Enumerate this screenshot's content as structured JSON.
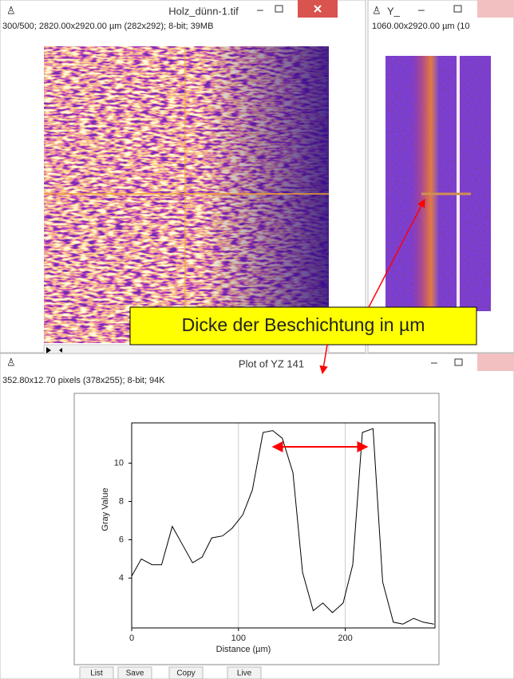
{
  "windows": [
    {
      "title": "Holz_dünn-1.tif",
      "info": "300/500; 2820.00x2920.00 µm (282x292); 8-bit; 39MB"
    },
    {
      "title": "Y_",
      "info": "1060.00x2920.00 µm (10"
    },
    {
      "title": "Plot of YZ 141",
      "info": "352.80x12.70 pixels (378x255); 8-bit; 94K",
      "buttons": [
        "List",
        "Save",
        "Copy",
        "Live"
      ]
    }
  ],
  "annotation": "Dicke der Beschichtung in µm",
  "chart_data": {
    "type": "line",
    "xlabel": "Distance (µm)",
    "ylabel": "Gray Value",
    "x": [
      0,
      9,
      19,
      28,
      38,
      47,
      57,
      66,
      75,
      85,
      94,
      104,
      113,
      123,
      132,
      141,
      151,
      160,
      170,
      179,
      188,
      198,
      207,
      216,
      226,
      235,
      245,
      254,
      264,
      273,
      283
    ],
    "values": [
      4.1,
      5.0,
      4.7,
      4.7,
      6.7,
      5.8,
      4.8,
      5.1,
      6.1,
      6.2,
      6.6,
      7.3,
      8.6,
      11.6,
      11.7,
      11.3,
      9.5,
      4.3,
      2.3,
      2.7,
      2.2,
      2.7,
      4.7,
      11.6,
      11.8,
      3.8,
      1.7,
      1.6,
      1.9,
      1.7,
      1.6
    ],
    "color": "#000000",
    "xlim": [
      0,
      284
    ],
    "ylim": [
      1.4,
      12.1
    ],
    "xticks": [
      0,
      100,
      200
    ],
    "yticks": [
      4,
      6,
      8,
      10
    ],
    "xgrid": true
  }
}
